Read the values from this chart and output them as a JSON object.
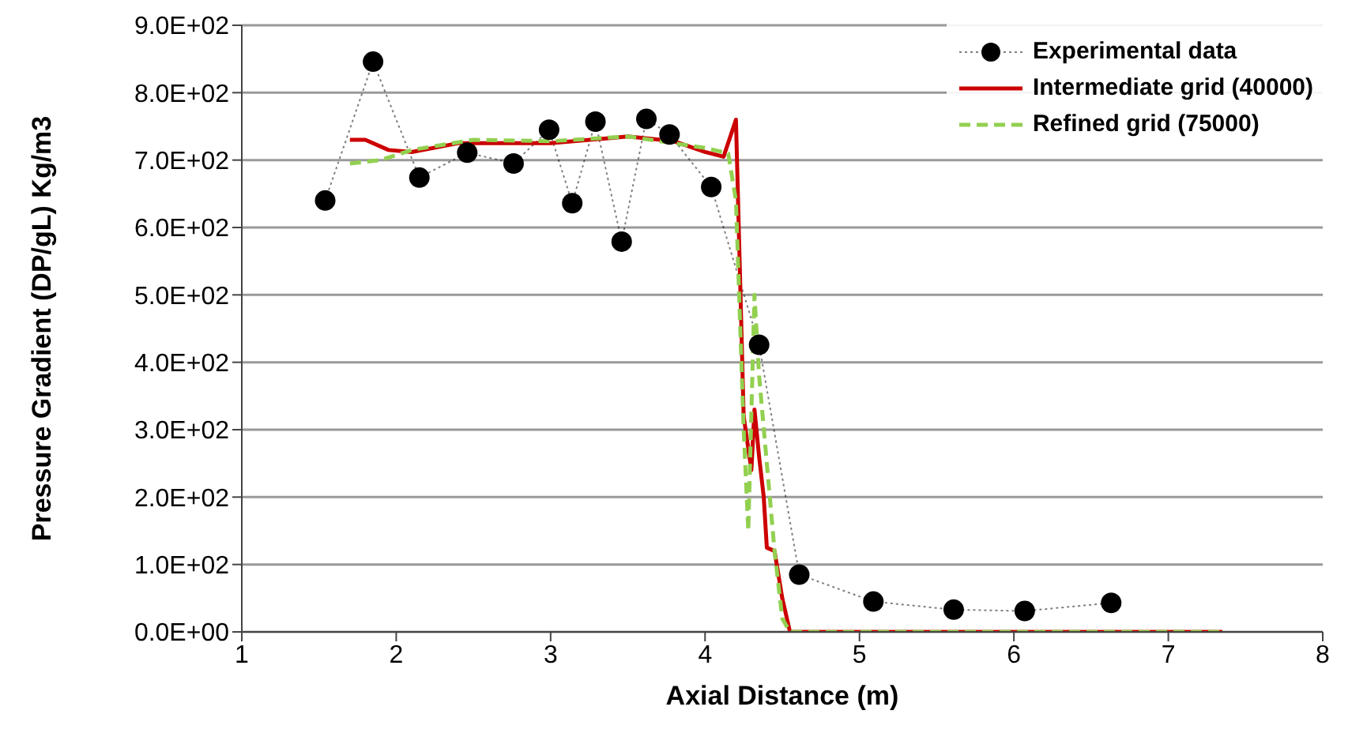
{
  "chart_data": {
    "type": "line",
    "xlabel": "Axial Distance (m)",
    "ylabel": "Pressure Gradient (DP/gL) Kg/m3",
    "xlim": [
      1,
      8
    ],
    "xticks": [
      1,
      2,
      3,
      4,
      5,
      6,
      7,
      8
    ],
    "ylim": [
      0,
      900
    ],
    "yticks": [
      {
        "value": 0,
        "label": "0.0E+00"
      },
      {
        "value": 100,
        "label": "1.0E+02"
      },
      {
        "value": 200,
        "label": "2.0E+02"
      },
      {
        "value": 300,
        "label": "3.0E+02"
      },
      {
        "value": 400,
        "label": "4.0E+02"
      },
      {
        "value": 500,
        "label": "5.0E+02"
      },
      {
        "value": 600,
        "label": "6.0E+02"
      },
      {
        "value": 700,
        "label": "7.0E+02"
      },
      {
        "value": 800,
        "label": "8.0E+02"
      },
      {
        "value": 900,
        "label": "9.0E+02"
      }
    ],
    "grid": "y",
    "legend": "top right",
    "series": [
      {
        "name": "Experimental data",
        "color": "#000000",
        "marker": "circle",
        "line_style": "dotted",
        "x": [
          1.54,
          1.85,
          2.15,
          2.46,
          2.76,
          2.99,
          3.14,
          3.29,
          3.46,
          3.62,
          3.77,
          4.04,
          4.35,
          4.61,
          5.09,
          5.61,
          6.07,
          6.63
        ],
        "values": [
          640,
          846,
          674,
          711,
          695,
          745,
          636,
          757,
          579,
          761,
          738,
          660,
          426,
          85,
          45,
          33,
          31,
          43
        ]
      },
      {
        "name": "Intermediate grid (40000)",
        "color": "#cc0000",
        "marker": "none",
        "line_style": "solid",
        "x": [
          1.7,
          1.8,
          1.95,
          2.1,
          2.4,
          3.0,
          3.5,
          3.8,
          4.0,
          4.12,
          4.2,
          4.25,
          4.3,
          4.32,
          4.35,
          4.38,
          4.4,
          4.45,
          4.5,
          4.55,
          7.35
        ],
        "values": [
          730,
          730,
          715,
          712,
          725,
          725,
          735,
          728,
          712,
          705,
          760,
          320,
          240,
          330,
          260,
          200,
          125,
          120,
          50,
          0,
          0
        ]
      },
      {
        "name": "Refined grid (75000)",
        "color": "#92d050",
        "marker": "none",
        "line_style": "dashed",
        "x": [
          1.7,
          1.9,
          2.1,
          2.5,
          3.0,
          3.5,
          3.8,
          4.0,
          4.15,
          4.2,
          4.25,
          4.28,
          4.32,
          4.35,
          4.4,
          4.45,
          4.5,
          4.55,
          7.35
        ],
        "values": [
          695,
          700,
          715,
          730,
          728,
          735,
          725,
          718,
          710,
          640,
          300,
          150,
          500,
          380,
          250,
          120,
          20,
          0,
          0
        ]
      }
    ]
  }
}
